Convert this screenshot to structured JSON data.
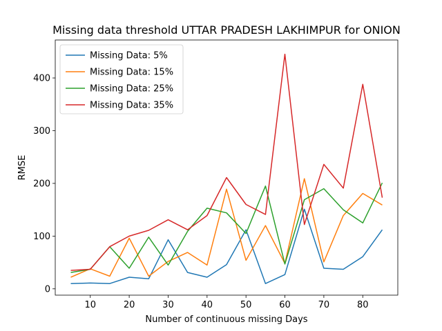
{
  "chart_data": {
    "type": "line",
    "title": "Missing data threshold UTTAR PRADESH LAKHIMPUR for ONION",
    "xlabel": "Number of continuous missing Days",
    "ylabel": "RMSE",
    "xlim": [
      1,
      89
    ],
    "ylim": [
      -12,
      472
    ],
    "xticks": [
      10,
      20,
      30,
      40,
      50,
      60,
      70,
      80
    ],
    "yticks": [
      0,
      100,
      200,
      300,
      400
    ],
    "grid": false,
    "legend_position": "top-left",
    "x": [
      5,
      10,
      15,
      20,
      25,
      30,
      35,
      40,
      45,
      50,
      55,
      60,
      65,
      70,
      75,
      80,
      85
    ],
    "series": [
      {
        "name": "Missing Data: 5%",
        "color": "#1f77b4",
        "values": [
          10,
          11,
          10,
          22,
          19,
          93,
          31,
          22,
          46,
          112,
          10,
          27,
          151,
          39,
          37,
          61,
          112
        ]
      },
      {
        "name": "Missing Data: 15%",
        "color": "#ff7f0e",
        "values": [
          22,
          38,
          24,
          96,
          24,
          52,
          69,
          45,
          189,
          54,
          120,
          48,
          209,
          51,
          139,
          181,
          159
        ]
      },
      {
        "name": "Missing Data: 25%",
        "color": "#2ca02c",
        "values": [
          31,
          37,
          80,
          39,
          98,
          45,
          109,
          153,
          144,
          105,
          195,
          47,
          169,
          190,
          150,
          125,
          201
        ]
      },
      {
        "name": "Missing Data: 35%",
        "color": "#d62728",
        "values": [
          35,
          37,
          80,
          100,
          111,
          131,
          112,
          139,
          211,
          160,
          141,
          445,
          122,
          236,
          191,
          388,
          173
        ]
      }
    ]
  }
}
